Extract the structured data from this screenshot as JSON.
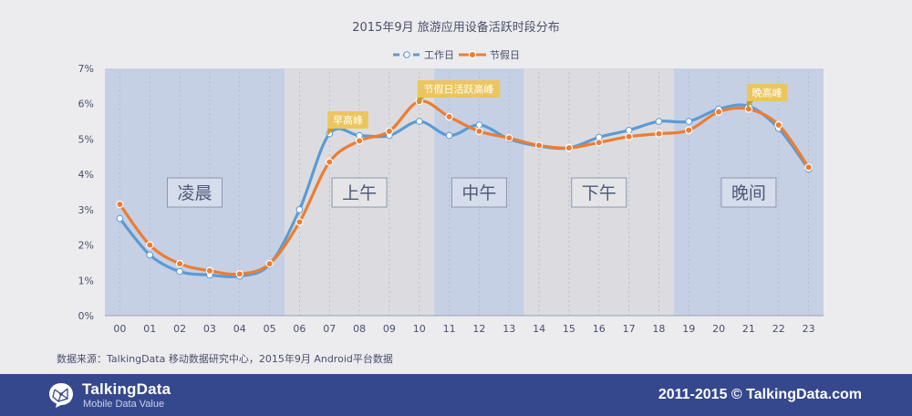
{
  "chart_data": {
    "type": "line",
    "title": "2015年9月 旅游应用设备活跃时段分布",
    "categories": [
      "00",
      "01",
      "02",
      "03",
      "04",
      "05",
      "06",
      "07",
      "08",
      "09",
      "10",
      "11",
      "12",
      "13",
      "14",
      "15",
      "16",
      "17",
      "18",
      "19",
      "20",
      "21",
      "22",
      "23"
    ],
    "ylim": [
      0,
      7
    ],
    "yticks": [
      "0%",
      "1%",
      "2%",
      "3%",
      "4%",
      "5%",
      "6%",
      "7%"
    ],
    "series": [
      {
        "name": "工作日",
        "color": "#5b9bd5",
        "style": "dashed-legend",
        "values": [
          2.75,
          1.72,
          1.25,
          1.15,
          1.12,
          1.45,
          3.0,
          5.15,
          5.1,
          5.1,
          5.5,
          5.1,
          5.4,
          5.0,
          4.8,
          4.75,
          5.05,
          5.25,
          5.5,
          5.5,
          5.85,
          5.93,
          5.3,
          4.15
        ]
      },
      {
        "name": "节假日",
        "color": "#ed7d31",
        "style": "solid",
        "values": [
          3.15,
          2.0,
          1.47,
          1.27,
          1.18,
          1.47,
          2.65,
          4.35,
          4.95,
          5.22,
          6.07,
          5.63,
          5.22,
          5.03,
          4.82,
          4.75,
          4.9,
          5.07,
          5.15,
          5.25,
          5.77,
          5.85,
          5.4,
          4.2
        ]
      }
    ],
    "bands": [
      {
        "label": "凌晨",
        "from": "00",
        "to": "05",
        "color": "#c5d0e5"
      },
      {
        "label": "上午",
        "from": "06",
        "to": "10",
        "color": "#dcdce0"
      },
      {
        "label": "中午",
        "from": "11",
        "to": "13",
        "color": "#c5d0e5"
      },
      {
        "label": "下午",
        "from": "14",
        "to": "18",
        "color": "#dcdce0"
      },
      {
        "label": "晚间",
        "from": "19",
        "to": "23",
        "color": "#c5d0e5"
      }
    ],
    "annotations": [
      {
        "label": "早高峰",
        "category": "07"
      },
      {
        "label": "节假日活跃高峰",
        "category": "10"
      },
      {
        "label": "晚高峰",
        "category": "21"
      }
    ],
    "legend_position": "top-center",
    "grid": false
  },
  "source": "数据来源：TalkingData 移动数据研究中心，2015年9月 Android平台数据",
  "footer": {
    "brand": "TalkingData",
    "tagline": "Mobile Data Value",
    "copyright": "2011-2015 © TalkingData.com",
    "background": "#35488d"
  }
}
